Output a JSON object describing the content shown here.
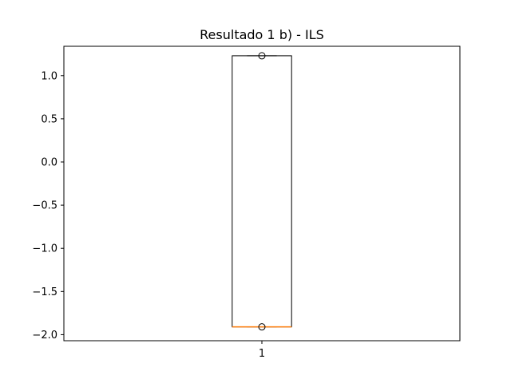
{
  "chart_data": {
    "type": "box",
    "title": "Resultado 1 b) - ILS",
    "xlabel": "",
    "ylabel": "",
    "categories": [
      "1"
    ],
    "ylim": [
      -2.07,
      1.34
    ],
    "yticks": [
      -2.0,
      -1.5,
      -1.0,
      -0.5,
      0.0,
      0.5,
      1.0
    ],
    "ytick_labels": [
      "−2.0",
      "−1.5",
      "−1.0",
      "−0.5",
      "0.0",
      "0.5",
      "1.0"
    ],
    "box": {
      "q1": -1.91,
      "median": -1.91,
      "q3": 1.23,
      "whisker_low": -1.91,
      "whisker_high": 1.23,
      "fliers": [
        1.23,
        -1.91
      ]
    },
    "grid": false,
    "legend": "none",
    "colors": {
      "box": "#000000",
      "median": "#ff7f0e",
      "flier": "#000000"
    }
  }
}
